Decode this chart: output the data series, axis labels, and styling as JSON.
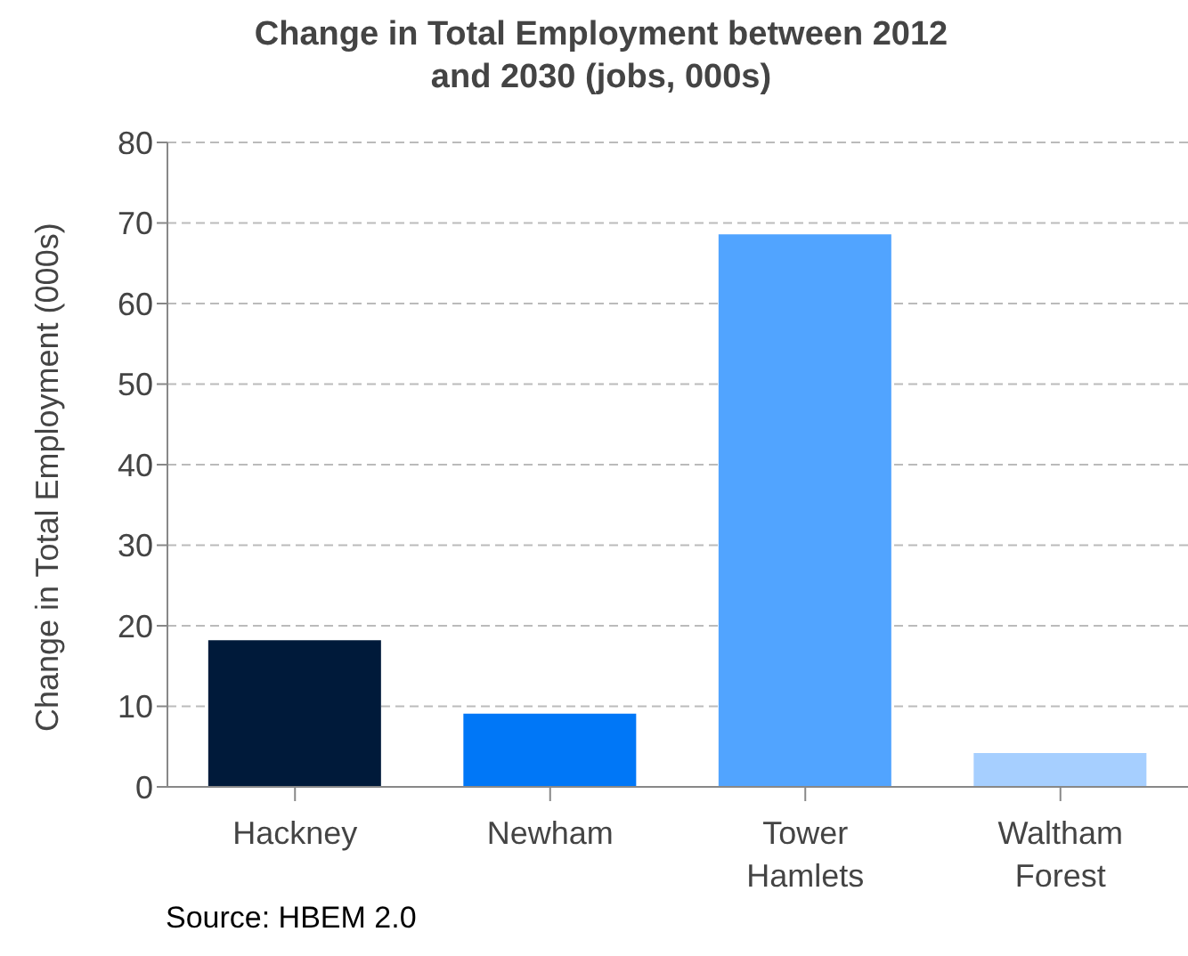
{
  "chart_data": {
    "type": "bar",
    "title": "Change in Total Employment between 2012 and 2030 (jobs, 000s)",
    "ylabel": "Change in Total Employment (000s)",
    "categories": [
      "Hackney",
      "Newham",
      "Tower Hamlets",
      "Waltham Forest"
    ],
    "values": [
      18.2,
      9.1,
      68.6,
      4.2
    ],
    "colors": [
      "#001a3a",
      "#0077f7",
      "#51a4ff",
      "#a6cfff"
    ],
    "ylim": [
      0,
      80
    ],
    "yticks": [
      0,
      10,
      20,
      30,
      40,
      50,
      60,
      70,
      80
    ],
    "grid": "y",
    "annotations": [
      "Source: HBEM 2.0"
    ]
  }
}
